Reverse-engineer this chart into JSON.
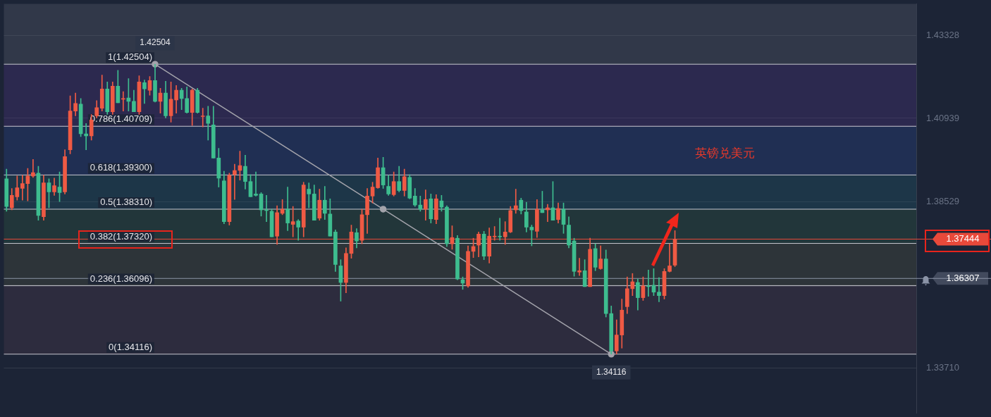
{
  "chart_data": {
    "type": "candlestick",
    "categories": [
      null,
      null,
      null,
      null,
      null,
      null,
      null,
      null,
      null,
      null,
      null,
      null,
      null,
      null,
      null,
      null,
      null,
      null,
      null,
      null,
      null,
      null,
      null,
      null,
      null,
      null,
      null,
      null,
      null,
      null,
      null,
      null,
      null,
      null,
      null,
      null,
      null,
      null,
      null,
      null,
      null,
      null,
      null,
      null,
      null,
      null,
      null,
      null,
      null,
      null,
      null,
      null,
      null,
      null,
      null,
      null,
      null,
      null,
      null,
      null,
      null,
      null,
      null,
      null,
      null,
      null,
      null,
      null,
      null,
      null,
      null,
      null,
      null,
      null,
      null,
      null,
      null,
      null,
      null,
      null,
      null,
      null,
      null,
      null,
      null,
      null,
      null,
      null,
      null,
      null,
      null,
      null,
      null,
      null,
      null,
      null,
      null,
      null,
      null,
      null,
      null,
      null,
      null,
      null,
      null,
      null,
      null,
      null,
      null,
      null,
      null,
      null,
      null,
      null,
      null,
      null,
      null,
      null,
      null,
      null,
      null,
      null,
      null,
      null,
      null,
      null,
      null,
      null,
      null,
      null,
      null,
      null,
      null,
      null,
      null,
      null,
      null,
      null,
      null,
      null,
      null,
      null,
      null,
      null,
      null,
      null,
      null,
      null,
      null,
      null,
      null,
      null,
      null,
      null,
      null,
      null,
      null,
      null,
      null,
      null,
      null,
      null,
      null,
      null,
      null,
      null,
      null,
      null,
      null,
      null,
      null,
      null
    ],
    "ohlc": [
      [
        1.3919,
        1.3947,
        1.3825,
        1.3839
      ],
      [
        1.3835,
        1.3891,
        1.3829,
        1.3871
      ],
      [
        1.3867,
        1.3927,
        1.3857,
        1.3893
      ],
      [
        1.3891,
        1.3929,
        1.3857,
        1.3905
      ],
      [
        1.3905,
        1.3949,
        1.3855,
        1.3927
      ],
      [
        1.3927,
        1.3975,
        1.3923,
        1.3937
      ],
      [
        1.3935,
        1.3955,
        1.3799,
        1.3813
      ],
      [
        1.3809,
        1.3929,
        1.3799,
        1.3907
      ],
      [
        1.3907,
        1.3919,
        1.3835,
        1.3881
      ],
      [
        1.3881,
        1.3921,
        1.3871,
        1.3899
      ],
      [
        1.3895,
        1.3939,
        1.3853,
        1.3879
      ],
      [
        1.3881,
        1.4003,
        1.3875,
        1.3983
      ],
      [
        1.4003,
        1.4159,
        1.3991,
        1.4115
      ],
      [
        1.4115,
        1.4167,
        1.4101,
        1.4137
      ],
      [
        1.4135,
        1.4151,
        1.4041,
        1.4049
      ],
      [
        1.4049,
        1.4079,
        1.4003,
        1.4043
      ],
      [
        1.4043,
        1.4105,
        1.4031,
        1.4089
      ],
      [
        1.4101,
        1.4145,
        1.4095,
        1.4125
      ],
      [
        1.4123,
        1.4219,
        1.4115,
        1.4179
      ],
      [
        1.4179,
        1.4199,
        1.4105,
        1.4113
      ],
      [
        1.4113,
        1.4199,
        1.4105,
        1.4187
      ],
      [
        1.4187,
        1.4233,
        1.4139,
        1.4139
      ],
      [
        1.4149,
        1.4171,
        1.4115,
        1.4151
      ],
      [
        1.4153,
        1.4209,
        1.4115,
        1.4143
      ],
      [
        1.4143,
        1.4175,
        1.4113,
        1.4113
      ],
      [
        1.4113,
        1.4217,
        1.4105,
        1.4199
      ],
      [
        1.4197,
        1.4205,
        1.4137,
        1.4179
      ],
      [
        1.4175,
        1.4215,
        1.4161,
        1.4203
      ],
      [
        1.4203,
        1.425,
        1.4141,
        1.4143
      ],
      [
        1.4143,
        1.4181,
        1.4109,
        1.4167
      ],
      [
        1.4167,
        1.4201,
        1.4095,
        1.4101
      ],
      [
        1.4101,
        1.4199,
        1.4083,
        1.4149
      ],
      [
        1.4147,
        1.4189,
        1.4109,
        1.4175
      ],
      [
        1.4175,
        1.4181,
        1.4119,
        1.4151
      ],
      [
        1.4151,
        1.4185,
        1.4109,
        1.4111
      ],
      [
        1.4111,
        1.4179,
        1.4073,
        1.4175
      ],
      [
        1.4175,
        1.4181,
        1.4109,
        1.4111
      ],
      [
        1.4099,
        1.4123,
        1.4069,
        1.4101
      ],
      [
        1.4101,
        1.4129,
        1.4031,
        1.4079
      ],
      [
        1.4075,
        1.4129,
        1.3979,
        1.3979
      ],
      [
        1.3979,
        1.4007,
        1.3895,
        1.3921
      ],
      [
        1.3913,
        1.3941,
        1.3789,
        1.3795
      ],
      [
        1.3795,
        1.3935,
        1.3785,
        1.3929
      ],
      [
        1.3931,
        1.3961,
        1.3859,
        1.3943
      ],
      [
        1.3943,
        1.3999,
        1.3915,
        1.3957
      ],
      [
        1.3955,
        1.3987,
        1.3889,
        1.3911
      ],
      [
        1.3911,
        1.3931,
        1.3867,
        1.3867
      ],
      [
        1.3875,
        1.3939,
        1.3869,
        1.3871
      ],
      [
        1.3875,
        1.3879,
        1.3811,
        1.3829
      ],
      [
        1.3829,
        1.3871,
        1.3795,
        1.3827
      ],
      [
        1.3825,
        1.3831,
        1.3751,
        1.3751
      ],
      [
        1.3753,
        1.3841,
        1.3729,
        1.3821
      ],
      [
        1.3819,
        1.3859,
        1.3815,
        1.3831
      ],
      [
        1.3831,
        1.3895,
        1.3769,
        1.3791
      ],
      [
        1.3787,
        1.3839,
        1.3751,
        1.3795
      ],
      [
        1.3797,
        1.3801,
        1.3741,
        1.3779
      ],
      [
        1.3779,
        1.3909,
        1.3751,
        1.3901
      ],
      [
        1.3889,
        1.3907,
        1.3835,
        1.3875
      ],
      [
        1.3875,
        1.3901,
        1.3799,
        1.3799
      ],
      [
        1.3805,
        1.3889,
        1.3799,
        1.3857
      ],
      [
        1.3857,
        1.3897,
        1.3801,
        1.3819
      ],
      [
        1.3817,
        1.3861,
        1.3753,
        1.3753
      ],
      [
        1.3765,
        1.3771,
        1.3651,
        1.3671
      ],
      [
        1.3667,
        1.3685,
        1.3565,
        1.3619
      ],
      [
        1.3619,
        1.3719,
        1.3589,
        1.3703
      ],
      [
        1.3703,
        1.3785,
        1.3689,
        1.3765
      ],
      [
        1.3763,
        1.3775,
        1.3719,
        1.3739
      ],
      [
        1.3741,
        1.3831,
        1.3731,
        1.3815
      ],
      [
        1.3815,
        1.3891,
        1.3761,
        1.3869
      ],
      [
        1.3869,
        1.3909,
        1.3849,
        1.3895
      ],
      [
        1.3893,
        1.3979,
        1.3891,
        1.3951
      ],
      [
        1.3951,
        1.3981,
        1.3891,
        1.3901
      ],
      [
        1.3897,
        1.3929,
        1.3871,
        1.3875
      ],
      [
        1.3873,
        1.3939,
        1.3869,
        1.3911
      ],
      [
        1.3911,
        1.3955,
        1.3881,
        1.3885
      ],
      [
        1.3885,
        1.3947,
        1.3869,
        1.3925
      ],
      [
        1.3923,
        1.3931,
        1.3861,
        1.3863
      ],
      [
        1.3869,
        1.3891,
        1.3839,
        1.3843
      ],
      [
        1.3843,
        1.3869,
        1.3825,
        1.3831
      ],
      [
        1.3831,
        1.3887,
        1.3799,
        1.3859
      ],
      [
        1.3861,
        1.3875,
        1.3791,
        1.3803
      ],
      [
        1.3801,
        1.3873,
        1.3789,
        1.3861
      ],
      [
        1.3855,
        1.3871,
        1.3825,
        1.3837
      ],
      [
        1.3837,
        1.3841,
        1.3723,
        1.3731
      ],
      [
        1.3731,
        1.3783,
        1.3715,
        1.3749
      ],
      [
        1.3747,
        1.3755,
        1.3627,
        1.3629
      ],
      [
        1.3627,
        1.3635,
        1.3599,
        1.3617
      ],
      [
        1.3609,
        1.3725,
        1.3605,
        1.3709
      ],
      [
        1.3709,
        1.3747,
        1.3691,
        1.3723
      ],
      [
        1.3727,
        1.3765,
        1.3693,
        1.3759
      ],
      [
        1.3759,
        1.3767,
        1.3685,
        1.3695
      ],
      [
        1.3695,
        1.3777,
        1.3675,
        1.3753
      ],
      [
        1.3751,
        1.3781,
        1.3741,
        1.3753
      ],
      [
        1.3753,
        1.3805,
        1.3741,
        1.3751
      ],
      [
        1.3751,
        1.3795,
        1.3729,
        1.3765
      ],
      [
        1.3765,
        1.3839,
        1.3763,
        1.3827
      ],
      [
        1.3829,
        1.3889,
        1.3819,
        1.3841
      ],
      [
        1.3857,
        1.3863,
        1.3817,
        1.3827
      ],
      [
        1.3823,
        1.3851,
        1.3765,
        1.3779
      ],
      [
        1.3779,
        1.3785,
        1.3725,
        1.3771
      ],
      [
        1.3767,
        1.3859,
        1.3749,
        1.3831
      ],
      [
        1.3829,
        1.3883,
        1.3821,
        1.3821
      ],
      [
        1.3829,
        1.3845,
        1.3795,
        1.3835
      ],
      [
        1.3835,
        1.3911,
        1.3799,
        1.3799
      ],
      [
        1.3801,
        1.3849,
        1.3791,
        1.3833
      ],
      [
        1.3831,
        1.3849,
        1.3761,
        1.3787
      ],
      [
        1.3785,
        1.3809,
        1.3719,
        1.3727
      ],
      [
        1.3739,
        1.3747,
        1.3637,
        1.3651
      ],
      [
        1.3649,
        1.3689,
        1.3639,
        1.3653
      ],
      [
        1.3653,
        1.3685,
        1.3607,
        1.3607
      ],
      [
        1.3607,
        1.3747,
        1.3607,
        1.3715
      ],
      [
        1.3717,
        1.3731,
        1.3653,
        1.3663
      ],
      [
        1.3659,
        1.3725,
        1.3657,
        1.3687
      ],
      [
        1.3687,
        1.3713,
        1.3519,
        1.3529
      ],
      [
        1.3529,
        1.3551,
        1.3412,
        1.3421
      ],
      [
        1.3421,
        1.3511,
        1.3412,
        1.3467
      ],
      [
        1.3467,
        1.3571,
        1.3429,
        1.3539
      ],
      [
        1.3549,
        1.3635,
        1.3529,
        1.3601
      ],
      [
        1.3601,
        1.3645,
        1.3581,
        1.3621
      ],
      [
        1.3619,
        1.3629,
        1.3539,
        1.3575
      ],
      [
        1.3575,
        1.3635,
        1.3567,
        1.3609
      ],
      [
        1.3609,
        1.3655,
        1.3579,
        1.3607
      ],
      [
        1.3611,
        1.3659,
        1.3581,
        1.3591
      ],
      [
        1.3591,
        1.3633,
        1.3563,
        1.3581
      ],
      [
        1.3581,
        1.3659,
        1.3571,
        1.3651
      ],
      [
        1.3651,
        1.3731,
        1.3649,
        1.3667
      ],
      [
        1.3669,
        1.3769,
        1.3665,
        1.3744
      ],
      null,
      null,
      null,
      null,
      null,
      null,
      null,
      null,
      null,
      null,
      null,
      null,
      null,
      null,
      null,
      null,
      null,
      null,
      null,
      null,
      null,
      null,
      null,
      null,
      null,
      null,
      null,
      null,
      null,
      null,
      null,
      null,
      null,
      null,
      null,
      null,
      null,
      null,
      null,
      null,
      null,
      null,
      null,
      null,
      null
    ],
    "series": [
      {
        "type": "line",
        "color": "#a3a3ab",
        "values": [
          null,
          null,
          null,
          null,
          null,
          null,
          null,
          null,
          null,
          null,
          null,
          null,
          null,
          null,
          null,
          null,
          null,
          null,
          null,
          null,
          null,
          null,
          null,
          null,
          null,
          null,
          null,
          null,
          1.42504,
          null,
          null,
          null,
          null,
          null,
          null,
          null,
          null,
          null,
          null,
          null,
          null,
          null,
          null,
          null,
          null,
          null,
          null,
          null,
          null,
          null,
          null,
          null,
          null,
          null,
          null,
          null,
          null,
          null,
          null,
          null,
          null,
          null,
          null,
          null,
          null,
          null,
          null,
          null,
          null,
          null,
          null,
          1.3831,
          null,
          null,
          null,
          null,
          null,
          null,
          null,
          null,
          null,
          null,
          null,
          null,
          null,
          null,
          null,
          null,
          null,
          null,
          null,
          null,
          null,
          null,
          null,
          null,
          null,
          null,
          null,
          null,
          null,
          null,
          null,
          null,
          null,
          null,
          null,
          null,
          null,
          null,
          null,
          null,
          null,
          null,
          1.34116,
          null,
          null,
          null,
          null,
          null,
          null,
          null,
          null,
          null,
          null,
          null,
          null,
          null,
          null,
          null,
          null,
          null,
          null,
          null,
          null,
          null,
          null,
          null,
          null,
          null,
          null,
          null,
          null,
          null,
          null,
          null,
          null,
          null,
          null,
          null,
          null,
          null,
          null,
          null,
          null,
          null,
          null,
          null,
          null,
          null,
          null,
          null,
          null,
          null,
          null,
          null,
          null,
          null,
          null,
          null,
          null,
          null
        ]
      }
    ],
    "marker": "circle",
    "ylim": [
      1.3241,
      1.4425
    ],
    "yticks": [
      1.43328,
      1.40939,
      1.38529,
      {
        "value": 1.36119,
        "label": null
      },
      {
        "value": 1.3371,
        "label": "1.33710"
      }
    ],
    "grid": "y",
    "bands": [
      {
        "axis": "y",
        "from": 1.42504,
        "to": 1.4425,
        "color": "#5a5f6e"
      },
      {
        "axis": "y",
        "from": 1.40709,
        "to": 1.42504,
        "color": "#4a357e"
      },
      {
        "axis": "y",
        "from": 1.393,
        "to": 1.40709,
        "color": "#27458a"
      },
      {
        "axis": "y",
        "from": 1.3831,
        "to": 1.393,
        "color": "#1f5a6a"
      },
      {
        "axis": "y",
        "from": 1.3732,
        "to": 1.3831,
        "color": "#2f5a42"
      },
      {
        "axis": "y",
        "from": 1.36096,
        "to": 1.3732,
        "color": "#4d5240"
      },
      {
        "axis": "y",
        "from": 1.34116,
        "to": 1.36096,
        "color": "#4e3c4c"
      }
    ],
    "ref_lines": [
      {
        "axis": "y",
        "value": 1.42504,
        "label": "1(1.42504)"
      },
      {
        "axis": "y",
        "value": 1.40709,
        "label": "0.786(1.40709)"
      },
      {
        "axis": "y",
        "value": 1.393,
        "label": "0.618(1.39300)"
      },
      {
        "axis": "y",
        "value": 1.3831,
        "label": "0.5(1.38310)"
      },
      {
        "axis": "y",
        "value": 1.3732,
        "label": "0.382(1.37320)"
      },
      {
        "axis": "y",
        "value": 1.36096,
        "label": "0.236(1.36096)"
      },
      {
        "axis": "y",
        "value": 1.34116,
        "label": "0(1.34116)"
      },
      {
        "axis": "y",
        "value": 1.37444,
        "label": "1.37444",
        "color": "#e8493a"
      },
      {
        "axis": "y",
        "value": 1.36307,
        "label": "1.36307",
        "color": "#8a93a6"
      }
    ],
    "annotations": [
      {
        "text": "1.42504",
        "y": 1.42504
      },
      {
        "text": "1.34116",
        "y": 1.34116
      },
      "英镑兑美元"
    ]
  }
}
